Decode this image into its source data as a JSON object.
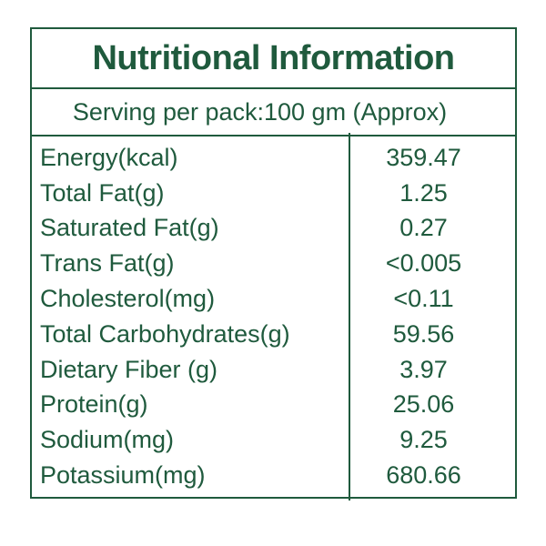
{
  "colors": {
    "green": "#1f5a3d",
    "background": "#ffffff"
  },
  "header": {
    "title": "Nutritional Information"
  },
  "serving": {
    "text": "Serving per pack:100 gm (Approx)"
  },
  "table": {
    "rows": [
      {
        "label": "Energy(kcal)",
        "value": "359.47"
      },
      {
        "label": "Total Fat(g)",
        "value": "1.25"
      },
      {
        "label": "Saturated Fat(g)",
        "value": "0.27"
      },
      {
        "label": "Trans Fat(g)",
        "value": "<0.005"
      },
      {
        "label": "Cholesterol(mg)",
        "value": "<0.11"
      },
      {
        "label": "Total Carbohydrates(g)",
        "value": "59.56"
      },
      {
        "label": "Dietary Fiber (g)",
        "value": "3.97"
      },
      {
        "label": "Protein(g)",
        "value": "25.06"
      },
      {
        "label": "Sodium(mg)",
        "value": "9.25"
      },
      {
        "label": "Potassium(mg)",
        "value": "680.66"
      }
    ]
  }
}
